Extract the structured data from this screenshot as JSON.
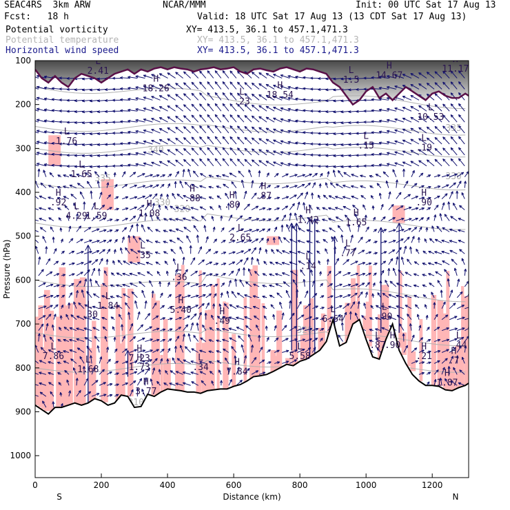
{
  "header": {
    "model": "SEAC4RS  3km ARW",
    "org": "NCAR/MMM",
    "init": "Init: 00 UTC Sat 17 Aug 13",
    "fcst": "Fcst:   18 h",
    "valid": "Valid: 18 UTC Sat 17 Aug 13 (13 CDT Sat 17 Aug 13)"
  },
  "fields": [
    {
      "name": "Potential vorticity",
      "xy": "XY= 413.5, 36.1 to 457.1,471.3",
      "color": "#000000"
    },
    {
      "name": "Potential temperature",
      "xy": "XY= 413.5, 36.1 to 457.1,471.3",
      "color": "#b4b4b4"
    },
    {
      "name": "Horizontal wind speed",
      "xy": "XY= 413.5, 36.1 to 457.1,471.3",
      "color": "#1a1a8c"
    }
  ],
  "colors": {
    "pv_fill": "#ffb6b6",
    "theta": "#b0b0b0",
    "wind": "#10106e",
    "terrain": "#000000",
    "tropo": "#5a1048"
  },
  "chart_data": {
    "type": "cross-section",
    "xlabel": "Distance (km)",
    "ylabel": "Pressure (hPa)",
    "xlim": [
      0,
      1310
    ],
    "ylim": [
      1050,
      100
    ],
    "x_ticks": [
      "0",
      "200",
      "400",
      "600",
      "800",
      "1000",
      "1200"
    ],
    "y_ticks": [
      "100",
      "200",
      "300",
      "400",
      "500",
      "600",
      "700",
      "800",
      "900",
      "1000"
    ],
    "endpoints": {
      "left": "S",
      "right": "N"
    },
    "theta_contour_labels": [
      "340",
      "335",
      "335",
      "330",
      "330",
      "320",
      "320",
      "310",
      "310"
    ],
    "extrema": [
      {
        "t": "L",
        "v": "2.41",
        "x": 190,
        "p": 130
      },
      {
        "t": "H",
        "v": "18.26",
        "x": 365,
        "p": 170
      },
      {
        "t": "L",
        "v": ".23",
        "x": 625,
        "p": 200
      },
      {
        "t": "H",
        "v": "18.54",
        "x": 740,
        "p": 185
      },
      {
        "t": "L",
        "v": "1.5",
        "x": 955,
        "p": 150
      },
      {
        "t": "H",
        "v": "14.67",
        "x": 1070,
        "p": 140
      },
      {
        "t": "H",
        "v": "11.17",
        "x": 1270,
        "p": 125
      },
      {
        "t": "L",
        "v": "10.53",
        "x": 1195,
        "p": 235
      },
      {
        "t": "L",
        "v": "1.76",
        "x": 95,
        "p": 290
      },
      {
        "t": "L",
        "v": "1.65",
        "x": 140,
        "p": 365
      },
      {
        "t": "L",
        "v": ".15",
        "x": 1000,
        "p": 300
      },
      {
        "t": "L",
        "v": ".19",
        "x": 1175,
        "p": 305
      },
      {
        "t": "H",
        "v": ".92",
        "x": 70,
        "p": 430
      },
      {
        "t": "L",
        "v": "4.29",
        "x": 125,
        "p": 460
      },
      {
        "t": "L",
        "v": "1.59",
        "x": 185,
        "p": 460
      },
      {
        "t": "H",
        "v": "1.08",
        "x": 345,
        "p": 455
      },
      {
        "t": "H",
        "v": ".88",
        "x": 475,
        "p": 420
      },
      {
        "t": "H",
        "v": ".80",
        "x": 595,
        "p": 435
      },
      {
        "t": "H",
        "v": ".87",
        "x": 690,
        "p": 415
      },
      {
        "t": "H",
        "v": ".90",
        "x": 1175,
        "p": 430
      },
      {
        "t": "L",
        "v": "2.65",
        "x": 620,
        "p": 510
      },
      {
        "t": "H",
        "v": "1.42",
        "x": 825,
        "p": 470
      },
      {
        "t": "H",
        "v": "1.65",
        "x": 970,
        "p": 475
      },
      {
        "t": "L",
        "v": ".35",
        "x": 325,
        "p": 550
      },
      {
        "t": "L",
        "v": ".77",
        "x": 945,
        "p": 545
      },
      {
        "t": "L",
        "v": ".14",
        "x": 825,
        "p": 575
      },
      {
        "t": "L",
        "v": ".36",
        "x": 435,
        "p": 600
      },
      {
        "t": "L",
        "v": "1.84",
        "x": 220,
        "p": 665
      },
      {
        "t": "L",
        "v": ".30",
        "x": 165,
        "p": 685
      },
      {
        "t": "H",
        "v": "5.40",
        "x": 440,
        "p": 675
      },
      {
        "t": "H",
        "v": ".49",
        "x": 565,
        "p": 700
      },
      {
        "t": "L",
        "v": "6.64",
        "x": 900,
        "p": 695
      },
      {
        "t": "L",
        "v": ".90",
        "x": 1055,
        "p": 690
      },
      {
        "t": "L",
        "v": ".87",
        "x": 1035,
        "p": 755
      },
      {
        "t": "H",
        "v": ".90",
        "x": 1080,
        "p": 755
      },
      {
        "t": "L",
        "v": "7.86",
        "x": 55,
        "p": 780
      },
      {
        "t": "H",
        "v": "7.23",
        "x": 315,
        "p": 785
      },
      {
        "t": "H",
        "v": "1.73",
        "x": 315,
        "p": 805
      },
      {
        "t": "L",
        "v": "1.68",
        "x": 160,
        "p": 810
      },
      {
        "t": "L",
        "v": ".34",
        "x": 500,
        "p": 805
      },
      {
        "t": "H",
        "v": "7.84",
        "x": 610,
        "p": 815
      },
      {
        "t": "L",
        "v": "5.58",
        "x": 800,
        "p": 780
      },
      {
        "t": "H",
        "v": ".21",
        "x": 1175,
        "p": 780
      },
      {
        "t": "L",
        "v": ".44",
        "x": 1280,
        "p": 755
      },
      {
        "t": "H",
        "v": ".7",
        "x": 1265,
        "p": 790
      },
      {
        "t": "H",
        "v": "1.87",
        "x": 1245,
        "p": 840
      },
      {
        "t": "H",
        "v": "3.77",
        "x": 335,
        "p": 860
      }
    ],
    "series": [
      {
        "name": "terrain",
        "x": [
          0,
          20,
          40,
          60,
          80,
          100,
          120,
          140,
          160,
          180,
          200,
          220,
          240,
          260,
          280,
          300,
          320,
          340,
          360,
          380,
          400,
          420,
          440,
          460,
          480,
          500,
          520,
          540,
          560,
          580,
          600,
          620,
          640,
          660,
          680,
          700,
          720,
          740,
          760,
          780,
          800,
          820,
          840,
          860,
          880,
          900,
          920,
          940,
          960,
          980,
          1000,
          1020,
          1040,
          1060,
          1080,
          1100,
          1120,
          1140,
          1160,
          1180,
          1200,
          1220,
          1240,
          1260,
          1280,
          1300,
          1310
        ],
        "y": [
          885,
          895,
          905,
          890,
          890,
          885,
          880,
          885,
          880,
          870,
          875,
          885,
          880,
          862,
          865,
          890,
          888,
          860,
          865,
          855,
          848,
          850,
          852,
          855,
          855,
          858,
          852,
          850,
          848,
          848,
          842,
          838,
          830,
          820,
          818,
          815,
          808,
          800,
          792,
          795,
          785,
          780,
          770,
          760,
          740,
          690,
          750,
          742,
          700,
          690,
          735,
          775,
          780,
          735,
          700,
          760,
          790,
          815,
          830,
          840,
          840,
          842,
          850,
          852,
          845,
          840,
          835
        ]
      },
      {
        "name": "tropopause-2PVU",
        "x": [
          0,
          20,
          40,
          60,
          80,
          100,
          120,
          140,
          160,
          180,
          200,
          220,
          240,
          260,
          280,
          300,
          320,
          340,
          360,
          380,
          400,
          420,
          440,
          460,
          480,
          500,
          520,
          540,
          560,
          580,
          600,
          620,
          640,
          660,
          680,
          700,
          720,
          740,
          760,
          780,
          800,
          820,
          840,
          860,
          880,
          900,
          920,
          940,
          960,
          980,
          1000,
          1020,
          1040,
          1060,
          1080,
          1100,
          1120,
          1140,
          1160,
          1180,
          1200,
          1220,
          1240,
          1260,
          1280,
          1300,
          1310
        ],
        "y": [
          120,
          140,
          150,
          135,
          150,
          160,
          140,
          130,
          135,
          140,
          150,
          140,
          130,
          125,
          120,
          130,
          120,
          125,
          118,
          115,
          120,
          115,
          118,
          120,
          125,
          120,
          118,
          115,
          120,
          118,
          115,
          125,
          130,
          120,
          118,
          122,
          125,
          118,
          115,
          120,
          125,
          118,
          120,
          125,
          130,
          150,
          160,
          180,
          200,
          190,
          170,
          160,
          185,
          175,
          190,
          175,
          160,
          170,
          180,
          190,
          175,
          170,
          180,
          185,
          185,
          175,
          180
        ]
      }
    ]
  }
}
